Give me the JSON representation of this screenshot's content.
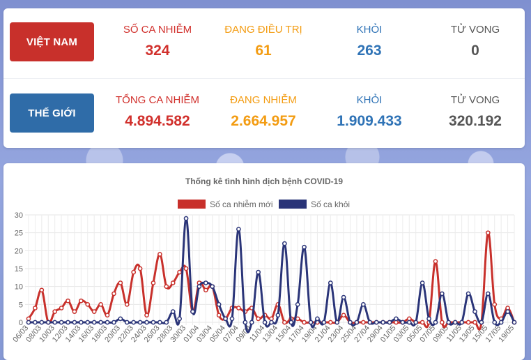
{
  "vietnam": {
    "label": "VIỆT NAM",
    "stats": [
      {
        "label": "SỐ CA NHIỄM",
        "value": "324"
      },
      {
        "label": "ĐANG ĐIỀU TRỊ",
        "value": "61"
      },
      {
        "label": "KHỎI",
        "value": "263"
      },
      {
        "label": "TỬ VONG",
        "value": "0"
      }
    ]
  },
  "world": {
    "label": "THẾ GIỚI",
    "stats": [
      {
        "label": "TỔNG CA NHIỄM",
        "value": "4.894.582"
      },
      {
        "label": "ĐANG NHIỄM",
        "value": "2.664.957"
      },
      {
        "label": "KHỎI",
        "value": "1.909.433"
      },
      {
        "label": "TỬ VONG",
        "value": "320.192"
      }
    ]
  },
  "colors": {
    "red": "#c8302b",
    "navy": "#2a3478",
    "blue": "#2f6ca8"
  },
  "chart_data": {
    "type": "line",
    "title": "Thống kê tình hình dịch bệnh COVID-19",
    "legend_position": "top",
    "grid": true,
    "ylim": [
      0,
      30
    ],
    "yticks": [
      0,
      5,
      10,
      15,
      20,
      25,
      30
    ],
    "x": [
      "06/03",
      "07/03",
      "08/03",
      "09/03",
      "10/03",
      "11/03",
      "12/03",
      "13/03",
      "14/03",
      "15/03",
      "16/03",
      "17/03",
      "18/03",
      "19/03",
      "20/03",
      "21/03",
      "22/03",
      "23/03",
      "24/03",
      "25/03",
      "26/03",
      "27/03",
      "28/03",
      "29/03",
      "30/03",
      "31/03",
      "01/04",
      "02/04",
      "03/04",
      "04/04",
      "05/04",
      "06/04",
      "07/04",
      "08/04",
      "09/04",
      "10/04",
      "11/04",
      "12/04",
      "13/04",
      "14/04",
      "15/04",
      "16/04",
      "17/04",
      "18/04",
      "19/04",
      "20/04",
      "21/04",
      "22/04",
      "23/04",
      "24/04",
      "25/04",
      "26/04",
      "27/04",
      "28/04",
      "29/04",
      "30/04",
      "01/05",
      "02/05",
      "03/05",
      "04/05",
      "05/05",
      "06/05",
      "07/05",
      "08/05",
      "09/05",
      "10/05",
      "11/05",
      "12/05",
      "13/05",
      "14/05",
      "15/05",
      "16/05",
      "17/05",
      "18/05",
      "19/05"
    ],
    "xtick_labels": [
      "06/03",
      "08/03",
      "10/03",
      "12/03",
      "14/03",
      "16/03",
      "18/03",
      "20/03",
      "22/03",
      "24/03",
      "26/03",
      "28/03",
      "30/03",
      "01/04",
      "03/04",
      "05/04",
      "07/04",
      "09/04",
      "11/04",
      "13/04",
      "15/04",
      "17/04",
      "19/04",
      "21/04",
      "23/04",
      "25/04",
      "27/04",
      "29/04",
      "01/05",
      "03/05",
      "05/05",
      "07/05",
      "09/05",
      "11/05",
      "13/05",
      "15/05",
      "17/05",
      "19/05"
    ],
    "series": [
      {
        "name": "Số ca nhiễm mới",
        "color": "#c8302b",
        "values": [
          1,
          4,
          9,
          0,
          3,
          4,
          6,
          3,
          6,
          5,
          3,
          5,
          2,
          8,
          11,
          5,
          14,
          15,
          2,
          11,
          19,
          10,
          11,
          14,
          15,
          3,
          11,
          9,
          10,
          2,
          1,
          4,
          4,
          3,
          4,
          1,
          2,
          1,
          5,
          0,
          1,
          1,
          0,
          0,
          0,
          0,
          0,
          0,
          2,
          0,
          0,
          0,
          0,
          0,
          0,
          0,
          0,
          0,
          1,
          0,
          0,
          0,
          17,
          0,
          0,
          0,
          0,
          0,
          0,
          0,
          25,
          5,
          1,
          4,
          0
        ]
      },
      {
        "name": "Số ca khỏi",
        "color": "#2a3478",
        "values": [
          0,
          0,
          0,
          0,
          0,
          0,
          0,
          0,
          0,
          0,
          0,
          0,
          0,
          0,
          1,
          0,
          0,
          0,
          0,
          0,
          0,
          0,
          3,
          1,
          29,
          3,
          10,
          11,
          10,
          5,
          1,
          1,
          26,
          0,
          0,
          14,
          0,
          0,
          2,
          22,
          0,
          5,
          21,
          0,
          1,
          0,
          11,
          0,
          7,
          0,
          0,
          5,
          0,
          0,
          0,
          0,
          1,
          0,
          0,
          0,
          11,
          1,
          0,
          8,
          0,
          0,
          0,
          8,
          3,
          0,
          8,
          0,
          0,
          3,
          0
        ]
      }
    ]
  }
}
